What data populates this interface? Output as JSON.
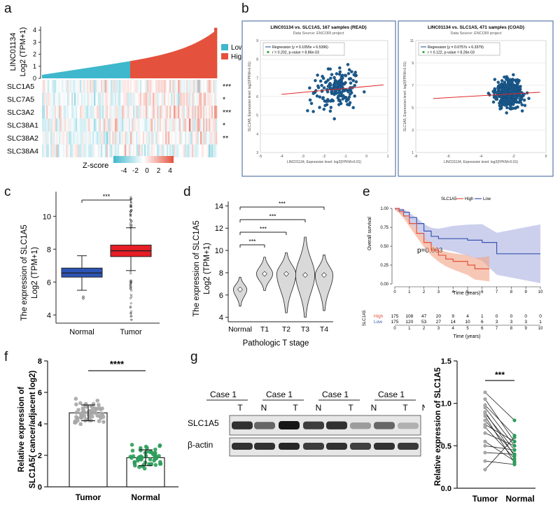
{
  "panels": {
    "a": {
      "letter": "a",
      "ylabel_1": "LINC01134",
      "ylabel_2": "Log2 (TPM+1)",
      "yticks": [
        "0",
        "1",
        "2",
        "3",
        "4"
      ],
      "legend": [
        {
          "label": "Low",
          "color": "#3fb7cc"
        },
        {
          "label": "High",
          "color": "#e4513c"
        }
      ],
      "genes": [
        {
          "name": "SLC1A5",
          "sig": "***"
        },
        {
          "name": "SLC7A5",
          "sig": "*"
        },
        {
          "name": "SLC3A2",
          "sig": "***"
        },
        {
          "name": "SLC38A1",
          "sig": "*"
        },
        {
          "name": "SLC38A2",
          "sig": "**"
        },
        {
          "name": "SLC38A4",
          "sig": ""
        }
      ],
      "zscore_label": "Z-score",
      "zscore_ticks": [
        "-4",
        "-2",
        "0",
        "2",
        "4"
      ]
    },
    "b": {
      "letter": "b",
      "left": {
        "title": "LINC01134 vs. SLC1A5, 167 samples (READ)",
        "source": "Data Source: ENCORI project",
        "reg": "Regression (y = 0.1055x + 6.5396)",
        "stats": "r = 0.202, p-value = 8.86e-03",
        "xlabel": "LINC01134, Expression level: log2(FPKM+0.01)",
        "ylabel": "SLC1A5, Expression level: log2(FPKM+0.01)",
        "xticks": [
          "-5",
          "-4",
          "-3",
          "-2",
          "-1",
          "0",
          "1"
        ],
        "yticks": [
          "3",
          "4",
          "5",
          "6",
          "7",
          "8",
          "9"
        ]
      },
      "right": {
        "title": "LINC01134 vs. SLC1A5, 471 samples (COAD)",
        "source": "Data Source: ENCORI project",
        "reg": "Regression (y = 0.0757x + 6.3379)",
        "stats": "r = 0.122, p-value = 8.26e-03",
        "xlabel": "LINC01134, Expression level: log2(FPKM+0.01)",
        "ylabel": "SLC1A5, Expression level: log2(FPKM+0.01)",
        "xticks": [
          "-8",
          "-6",
          "-4",
          "-2",
          "0"
        ],
        "yticks": [
          "1",
          "3",
          "5",
          "7",
          "9",
          "11"
        ]
      }
    },
    "c": {
      "letter": "c",
      "ylabel_1": "The expression of SLC1A5",
      "ylabel_2": "Log2 (TPM+1)",
      "yticks": [
        "4",
        "6",
        "8",
        "10"
      ],
      "categories": [
        "Normal",
        "Tumor"
      ],
      "sig": "***"
    },
    "d": {
      "letter": "d",
      "ylabel_1": "The expression of SLC1A5",
      "ylabel_2": "Log2 (TPM+1)",
      "xlabel": "Pathologic T stage",
      "yticks": [
        "4",
        "6",
        "8",
        "10",
        "12",
        "14"
      ],
      "categories": [
        "Normal",
        "T1",
        "T2",
        "T3",
        "T4"
      ],
      "sigs": [
        "***",
        "***",
        "***",
        "***"
      ]
    },
    "e": {
      "letter": "e",
      "legend_title": "SLC1A5",
      "legend_high": "High",
      "legend_low": "Low",
      "ylabel": "Overall survival",
      "xlabel": "Time (years)",
      "yticks": [
        "0.00",
        "0.25",
        "0.50",
        "0.75",
        "1.00"
      ],
      "xticks": [
        "0",
        "1",
        "2",
        "3",
        "4",
        "5",
        "6",
        "7",
        "8",
        "9",
        "10"
      ],
      "pvalue": "p=0.003",
      "risk_title": "SLC1A5",
      "risk_high_label": "High",
      "risk_low_label": "Low",
      "risk_high": [
        "175",
        "108",
        "47",
        "20",
        "9",
        "4",
        "1",
        "0",
        "0",
        "0",
        "0"
      ],
      "risk_low": [
        "175",
        "120",
        "53",
        "27",
        "14",
        "10",
        "6",
        "3",
        "3",
        "3",
        "1"
      ],
      "risk_xlabel": "Time (years)"
    },
    "f": {
      "letter": "f",
      "ylabel_1": "Relative expression of",
      "ylabel_2": "SLC1A5( cancer/adjacent  log2)",
      "yticks": [
        "0",
        "2",
        "4",
        "6",
        "8"
      ],
      "categories": [
        "Tumor",
        "Normal"
      ],
      "values": [
        4.7,
        1.85
      ],
      "sig": "****"
    },
    "g": {
      "letter": "g",
      "cases": [
        "Case 1",
        "Case 1",
        "Case 1",
        "Case 1"
      ],
      "lanes": [
        "T",
        "N",
        "T",
        "N",
        "T",
        "N",
        "T",
        "N"
      ],
      "rows": [
        "SLC1A5",
        "β-actin"
      ],
      "ylabel": "Relative expression of SLC1A5",
      "yticks": [
        "0.0",
        "0.5",
        "1.0",
        "1.5"
      ],
      "categories": [
        "Tumor",
        "Normal"
      ],
      "sig": "***"
    }
  }
}
